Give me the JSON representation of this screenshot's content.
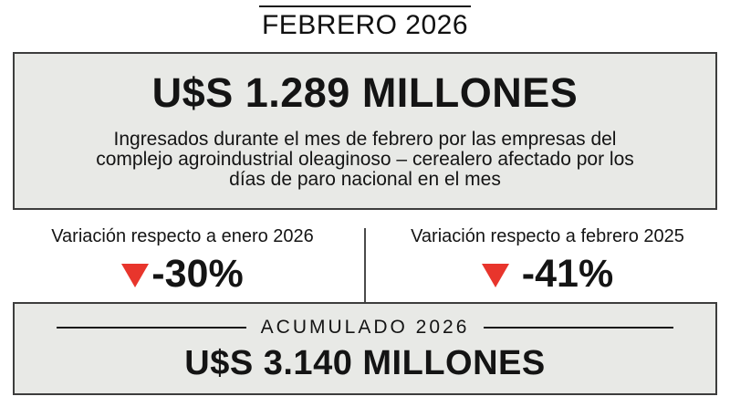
{
  "header": {
    "title": "FEBRERO 2026"
  },
  "febrero_box": {
    "amount": "U$S 1.289 MILLONES",
    "description_lines": [
      "Ingresados durante el mes de febrero por las empresas del",
      "complejo agroindustrial oleaginoso – cerealero afectado por los",
      "días de paro nacional en el mes"
    ]
  },
  "variations": [
    {
      "label": "Variación respecto a enero 2026",
      "value": "-30%",
      "direction": "down"
    },
    {
      "label": "Variación respecto a febrero 2025",
      "value": "-41%",
      "direction": "down"
    }
  ],
  "acumulado_box": {
    "label": "ACUMULADO 2026",
    "amount": "U$S 3.140 MILLONES"
  },
  "colors": {
    "box_background": "#e8e9e6",
    "box_border": "#3d3d3d",
    "negative_red": "#e8352c",
    "text": "#141414"
  },
  "chart_data": {
    "type": "table",
    "title": "FEBRERO 2026",
    "rows": [
      {
        "label": "Ingresos febrero 2026 (U$S millones)",
        "value": 1289
      },
      {
        "label": "Variación respecto a enero 2026 (%)",
        "value": -30
      },
      {
        "label": "Variación respecto a febrero 2025 (%)",
        "value": -41
      },
      {
        "label": "Acumulado 2026 (U$S millones)",
        "value": 3140
      }
    ]
  }
}
